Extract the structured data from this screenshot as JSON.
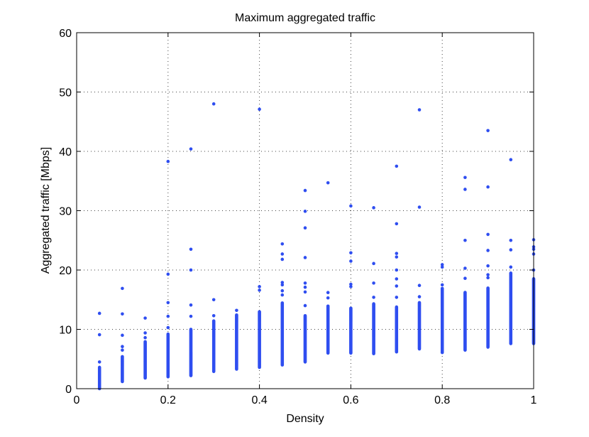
{
  "chart_data": {
    "type": "scatter",
    "title": "Maximum aggregated traffic",
    "xlabel": "Density",
    "ylabel": "Aggregated traffic [Mbps]",
    "xlim": [
      0,
      1
    ],
    "ylim": [
      0,
      60
    ],
    "grid": true,
    "marker_color": "#2f4ef0",
    "x_ticks": [
      {
        "value": 0,
        "label": "0"
      },
      {
        "value": 0.2,
        "label": "0.2"
      },
      {
        "value": 0.4,
        "label": "0.4"
      },
      {
        "value": 0.6,
        "label": "0.6"
      },
      {
        "value": 0.8,
        "label": "0.8"
      },
      {
        "value": 1,
        "label": "1"
      }
    ],
    "y_ticks": [
      {
        "value": 0,
        "label": "0"
      },
      {
        "value": 10,
        "label": "10"
      },
      {
        "value": 20,
        "label": "20"
      },
      {
        "value": 30,
        "label": "30"
      },
      {
        "value": 40,
        "label": "40"
      },
      {
        "value": 50,
        "label": "50"
      },
      {
        "value": 60,
        "label": "60"
      }
    ],
    "columns": [
      {
        "x": 0.05,
        "dense_range": [
          0.0,
          3.6
        ],
        "outliers": [
          4.5,
          9.1,
          12.7
        ]
      },
      {
        "x": 0.1,
        "dense_range": [
          1.2,
          5.5
        ],
        "outliers": [
          6.5,
          7.1,
          9.0,
          12.6,
          16.9
        ]
      },
      {
        "x": 0.15,
        "dense_range": [
          1.8,
          8.0
        ],
        "outliers": [
          8.6,
          9.4,
          11.9
        ]
      },
      {
        "x": 0.2,
        "dense_range": [
          2.0,
          9.3
        ],
        "outliers": [
          10.3,
          12.2,
          14.5,
          19.3,
          38.3
        ]
      },
      {
        "x": 0.25,
        "dense_range": [
          2.2,
          10.0
        ],
        "outliers": [
          12.2,
          14.1,
          20.0,
          23.5,
          40.4
        ]
      },
      {
        "x": 0.3,
        "dense_range": [
          2.9,
          11.5
        ],
        "outliers": [
          12.3,
          15.0,
          48.0
        ]
      },
      {
        "x": 0.35,
        "dense_range": [
          3.3,
          12.5
        ],
        "outliers": [
          13.2
        ]
      },
      {
        "x": 0.4,
        "dense_range": [
          3.6,
          13.0
        ],
        "outliers": [
          16.6,
          17.2,
          47.1
        ]
      },
      {
        "x": 0.45,
        "dense_range": [
          4.0,
          14.5
        ],
        "outliers": [
          15.8,
          16.5,
          17.5,
          17.9,
          21.8,
          22.7,
          24.4
        ]
      },
      {
        "x": 0.5,
        "dense_range": [
          4.5,
          12.3
        ],
        "outliers": [
          14.0,
          16.3,
          17.1,
          17.8,
          22.1,
          27.1,
          29.9,
          33.4
        ]
      },
      {
        "x": 0.55,
        "dense_range": [
          6.0,
          14.0
        ],
        "outliers": [
          15.3,
          16.2,
          34.7
        ]
      },
      {
        "x": 0.6,
        "dense_range": [
          6.0,
          13.6
        ],
        "outliers": [
          17.2,
          17.6,
          21.5,
          22.9,
          30.8
        ]
      },
      {
        "x": 0.65,
        "dense_range": [
          5.9,
          14.3
        ],
        "outliers": [
          15.4,
          17.8,
          21.1,
          30.5
        ]
      },
      {
        "x": 0.7,
        "dense_range": [
          6.2,
          13.8
        ],
        "outliers": [
          15.4,
          17.3,
          18.5,
          20.0,
          22.2,
          22.8,
          27.8,
          37.5
        ]
      },
      {
        "x": 0.75,
        "dense_range": [
          6.7,
          14.5
        ],
        "outliers": [
          15.5,
          17.4,
          30.6,
          47.0
        ]
      },
      {
        "x": 0.8,
        "dense_range": [
          6.1,
          17.0
        ],
        "outliers": [
          17.5,
          20.5,
          20.9
        ]
      },
      {
        "x": 0.85,
        "dense_range": [
          6.5,
          16.3
        ],
        "outliers": [
          18.6,
          20.3,
          25.0,
          33.6,
          35.6
        ]
      },
      {
        "x": 0.9,
        "dense_range": [
          7.0,
          17.0
        ],
        "outliers": [
          18.7,
          19.2,
          20.7,
          23.3,
          26.0,
          34.0,
          43.5
        ]
      },
      {
        "x": 0.95,
        "dense_range": [
          7.6,
          19.5
        ],
        "outliers": [
          20.5,
          23.4,
          25.0,
          38.6
        ]
      },
      {
        "x": 1.0,
        "dense_range": [
          7.6,
          18.6
        ],
        "outliers": [
          20.0,
          22.7,
          23.5,
          23.9,
          25.1
        ]
      }
    ]
  }
}
